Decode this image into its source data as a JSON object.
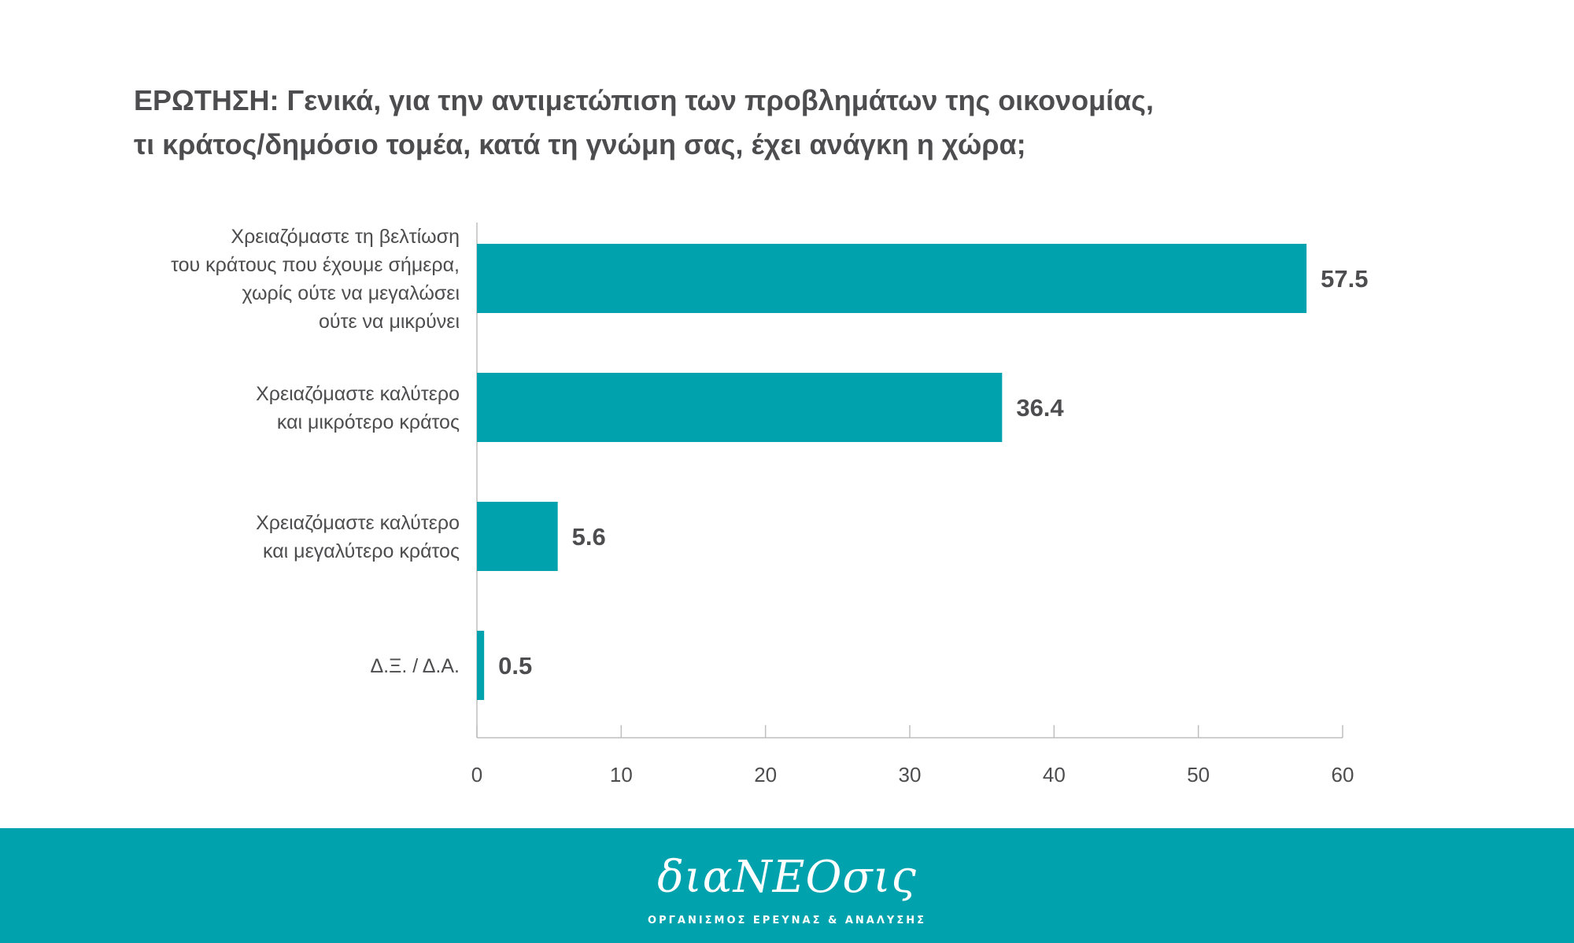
{
  "title_lines": [
    "ΕΡΩΤΗΣΗ: Γενικά, για την αντιμετώπιση των προβλημάτων της οικονομίας,",
    "τι κράτος/δημόσιο τομέα, κατά τη γνώμη σας, έχει ανάγκη η χώρα;"
  ],
  "chart_data": {
    "type": "bar",
    "orientation": "horizontal",
    "categories": [
      [
        "Χρειαζόμαστε τη βελτίωση",
        "του κράτους που έχουμε σήμερα,",
        "χωρίς ούτε να μεγαλώσει",
        "ούτε να μικρύνει"
      ],
      [
        "Χρειαζόμαστε καλύτερο",
        "και μικρότερο κράτος"
      ],
      [
        "Χρειαζόμαστε καλύτερο",
        "και μεγαλύτερο κράτος"
      ],
      [
        "Δ.Ξ. / Δ.Α."
      ]
    ],
    "values": [
      57.5,
      36.4,
      5.6,
      0.5
    ],
    "value_labels": [
      "57.5",
      "36.4",
      "5.6",
      "0.5"
    ],
    "xlim": [
      0,
      60
    ],
    "xticks": [
      0,
      10,
      20,
      30,
      40,
      50,
      60
    ],
    "xlabel": "",
    "ylabel": "",
    "grid": false,
    "bar_color": "#00a3ad"
  },
  "footer": {
    "logo": "διαΝΕΟσις",
    "tagline": "ΟΡΓΑΝΙΣΜΟΣ ΕΡΕΥΝΑΣ & ΑΝΑΛΥΣΗΣ"
  }
}
